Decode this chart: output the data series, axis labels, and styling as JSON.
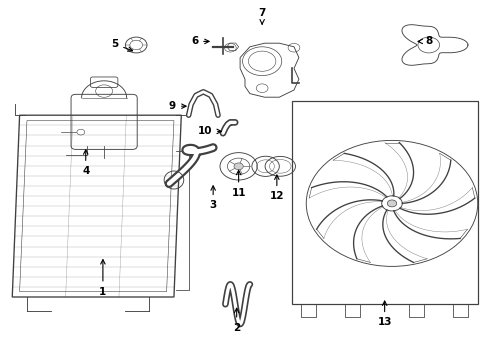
{
  "bg_color": "#ffffff",
  "line_color": "#404040",
  "label_color": "#000000",
  "lw": 0.8,
  "parts_labels": {
    "1": [
      0.175,
      0.245,
      0.175,
      0.175
    ],
    "2": [
      0.495,
      0.155,
      0.495,
      0.09
    ],
    "3": [
      0.435,
      0.485,
      0.435,
      0.415
    ],
    "4": [
      0.175,
      0.595,
      0.175,
      0.525
    ],
    "5": [
      0.265,
      0.885,
      0.225,
      0.885
    ],
    "6": [
      0.415,
      0.885,
      0.375,
      0.885
    ],
    "7": [
      0.535,
      0.955,
      0.535,
      0.985
    ],
    "8": [
      0.845,
      0.885,
      0.875,
      0.885
    ],
    "9": [
      0.39,
      0.71,
      0.355,
      0.71
    ],
    "10": [
      0.46,
      0.635,
      0.42,
      0.635
    ],
    "11": [
      0.5,
      0.525,
      0.5,
      0.455
    ],
    "12": [
      0.565,
      0.525,
      0.565,
      0.455
    ],
    "13": [
      0.79,
      0.155,
      0.79,
      0.09
    ]
  }
}
